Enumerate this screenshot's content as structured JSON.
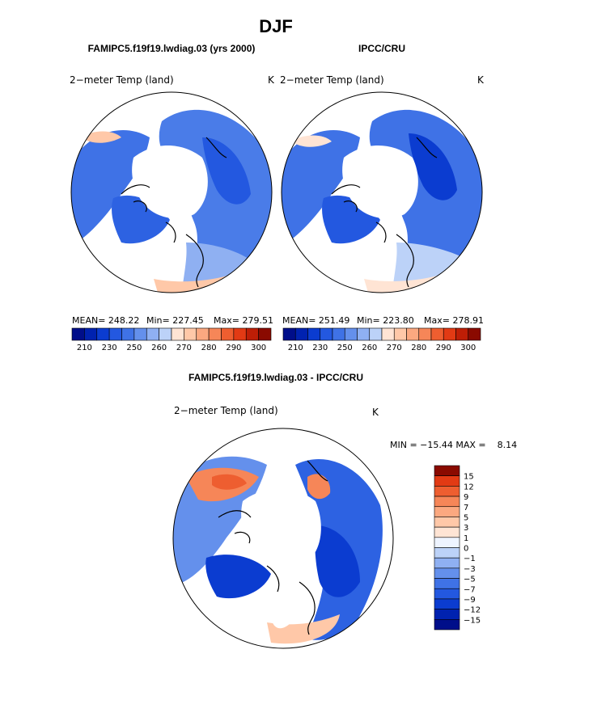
{
  "chart_data": [
    {
      "type": "heatmap",
      "panel": "model",
      "projection": "north-polar-stereographic",
      "title": "FAMIPC5.f19f19.lwdiag.03 (yrs 2000)",
      "variable": "2−meter Temp (land)",
      "units": "K",
      "stats": {
        "mean": "MEAN= 248.22",
        "min": "Min= 227.45",
        "max": "Max= 279.51"
      },
      "colorbar_ticks": [
        "210",
        "230",
        "250",
        "260",
        "270",
        "280",
        "290",
        "300"
      ]
    },
    {
      "type": "heatmap",
      "panel": "observations",
      "projection": "north-polar-stereographic",
      "title": "IPCC/CRU",
      "variable": "2−meter Temp (land)",
      "units": "K",
      "stats": {
        "mean": "MEAN= 251.49",
        "min": "Min= 223.80",
        "max": "Max= 278.91"
      },
      "colorbar_ticks": [
        "210",
        "230",
        "250",
        "260",
        "270",
        "280",
        "290",
        "300"
      ]
    },
    {
      "type": "heatmap",
      "panel": "difference",
      "projection": "north-polar-stereographic",
      "title": "FAMIPC5.f19f19.lwdiag.03 - IPCC/CRU",
      "variable": "2−meter Temp (land)",
      "units": "K",
      "range_text": "MIN = −15.44 MAX =    8.14",
      "colorbar_ticks": [
        "15",
        "12",
        "9",
        "7",
        "5",
        "3",
        "1",
        "0",
        "−1",
        "−3",
        "−5",
        "−7",
        "−9",
        "−12",
        "−15"
      ]
    }
  ],
  "header": {
    "season": "DJF"
  },
  "colors": {
    "scale16": [
      "#000E8A",
      "#0022B0",
      "#0B3CD0",
      "#2358E0",
      "#3F72E6",
      "#6490EC",
      "#8FB0F2",
      "#BCD2F8",
      "#FFE4D4",
      "#FFC8A8",
      "#FBA880",
      "#F68658",
      "#EE5E30",
      "#E23A14",
      "#BE1E06",
      "#8A0A00"
    ],
    "diff16": [
      "#000E8A",
      "#0022B0",
      "#0B3CD0",
      "#2358E0",
      "#3F72E6",
      "#6490EC",
      "#8FB0F2",
      "#BCD2F8",
      "#EEF4FF",
      "#FFE4D4",
      "#FFC8A8",
      "#FBA880",
      "#F68658",
      "#EE5E30",
      "#E23A14",
      "#8A0A00"
    ]
  }
}
